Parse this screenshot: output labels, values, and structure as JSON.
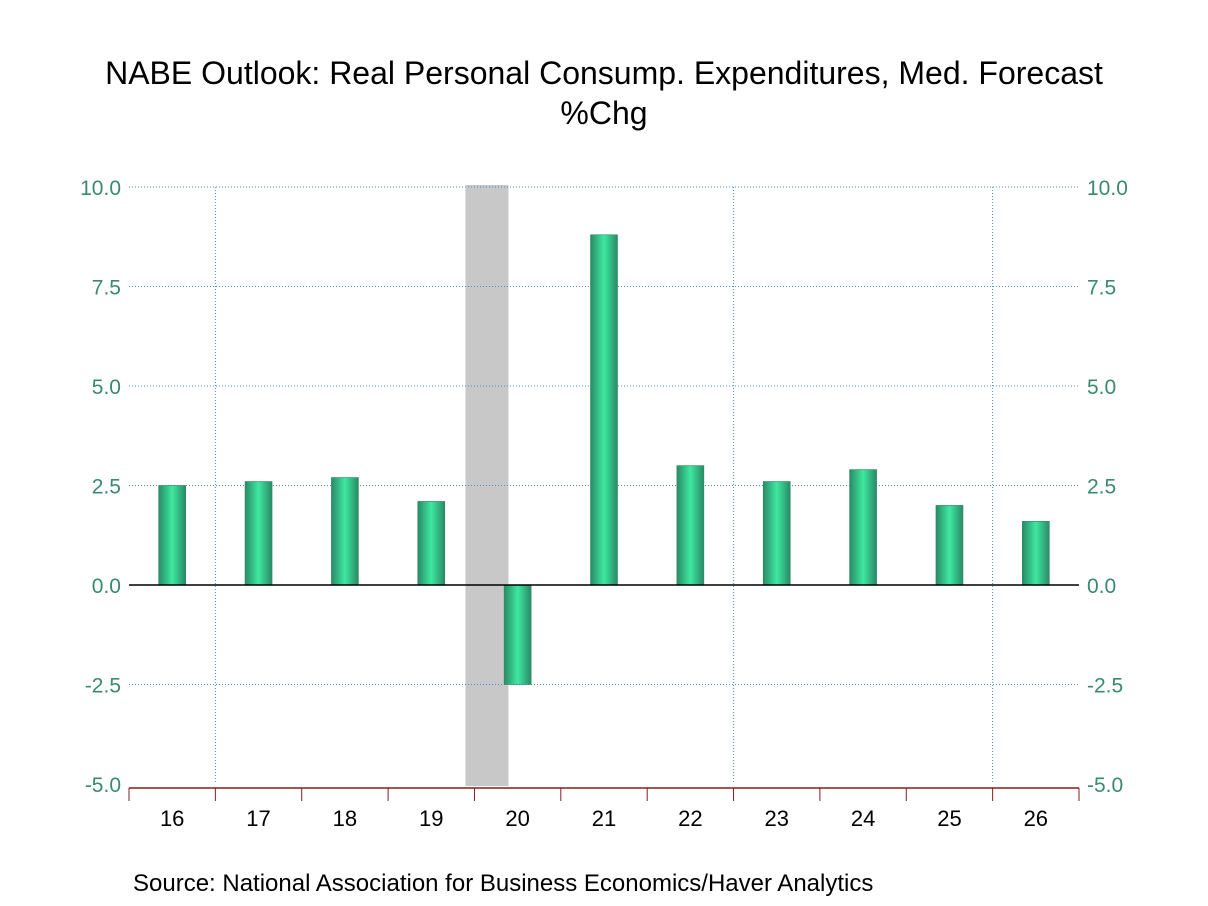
{
  "chart_data": {
    "type": "bar",
    "title": "NABE Outlook: Real Personal Consump. Expenditures, Med. Forecast",
    "subtitle": "%Chg",
    "xlabel": "",
    "ylabel": "",
    "categories": [
      "16",
      "17",
      "18",
      "19",
      "20",
      "21",
      "22",
      "23",
      "24",
      "25",
      "26"
    ],
    "series": [
      {
        "name": "Real Personal Consumption Expenditures, Median Forecast (%Chg)",
        "values": [
          2.5,
          2.6,
          2.7,
          2.1,
          -2.5,
          8.8,
          3.0,
          2.6,
          2.9,
          2.0,
          1.6
        ]
      }
    ],
    "ylim": [
      -5.0,
      10.0
    ],
    "yticks": [
      "10.0",
      "7.5",
      "5.0",
      "2.5",
      "0.0",
      "-2.5",
      "-5.0"
    ],
    "ytick_values": [
      10,
      7.5,
      5,
      2.5,
      0,
      -2.5,
      -5
    ],
    "y_axis_sides": [
      "left",
      "right"
    ],
    "grid": true,
    "vertical_grid_after_categories": [
      "16",
      "22",
      "25"
    ],
    "recession_shading": {
      "from_category": "19",
      "to_category": "20",
      "note": "shaded band near 2020"
    },
    "colors": {
      "bar": "#2fc98a",
      "bar_edge": "#2a8a66",
      "tick_label": "#3a8a70",
      "grid": "#4a90c0",
      "xaxis": "#8b1a1a",
      "shade": "#c8c8c8"
    }
  },
  "footer": {
    "source": "Source:  National Association for Business Economics/Haver Analytics"
  }
}
